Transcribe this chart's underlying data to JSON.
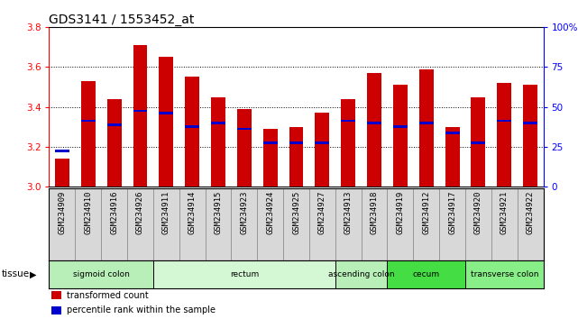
{
  "title": "GDS3141 / 1553452_at",
  "samples": [
    "GSM234909",
    "GSM234910",
    "GSM234916",
    "GSM234926",
    "GSM234911",
    "GSM234914",
    "GSM234915",
    "GSM234923",
    "GSM234924",
    "GSM234925",
    "GSM234927",
    "GSM234913",
    "GSM234918",
    "GSM234919",
    "GSM234912",
    "GSM234917",
    "GSM234920",
    "GSM234921",
    "GSM234922"
  ],
  "bar_values": [
    3.14,
    3.53,
    3.44,
    3.71,
    3.65,
    3.55,
    3.45,
    3.39,
    3.29,
    3.3,
    3.37,
    3.44,
    3.57,
    3.51,
    3.59,
    3.3,
    3.45,
    3.52,
    3.51
  ],
  "percentile_values": [
    3.18,
    3.33,
    3.31,
    3.38,
    3.37,
    3.3,
    3.32,
    3.29,
    3.22,
    3.22,
    3.22,
    3.33,
    3.32,
    3.3,
    3.32,
    3.27,
    3.22,
    3.33,
    3.32
  ],
  "bar_color": "#cc0000",
  "percentile_color": "#0000cc",
  "ymin": 3.0,
  "ymax": 3.8,
  "y_ticks": [
    3.0,
    3.2,
    3.4,
    3.6,
    3.8
  ],
  "right_yticks": [
    0,
    25,
    50,
    75,
    100
  ],
  "right_ytick_labels": [
    "0",
    "25",
    "50",
    "75",
    "100%"
  ],
  "tissue_groups": [
    {
      "label": "sigmoid colon",
      "start": 0,
      "end": 3,
      "color": "#b8eeb8"
    },
    {
      "label": "rectum",
      "start": 4,
      "end": 10,
      "color": "#d4f8d4"
    },
    {
      "label": "ascending colon",
      "start": 11,
      "end": 12,
      "color": "#b8eeb8"
    },
    {
      "label": "cecum",
      "start": 13,
      "end": 15,
      "color": "#44dd44"
    },
    {
      "label": "transverse colon",
      "start": 16,
      "end": 18,
      "color": "#88ee88"
    }
  ],
  "background_color": "#ffffff",
  "title_fontsize": 10,
  "bar_width": 0.55
}
